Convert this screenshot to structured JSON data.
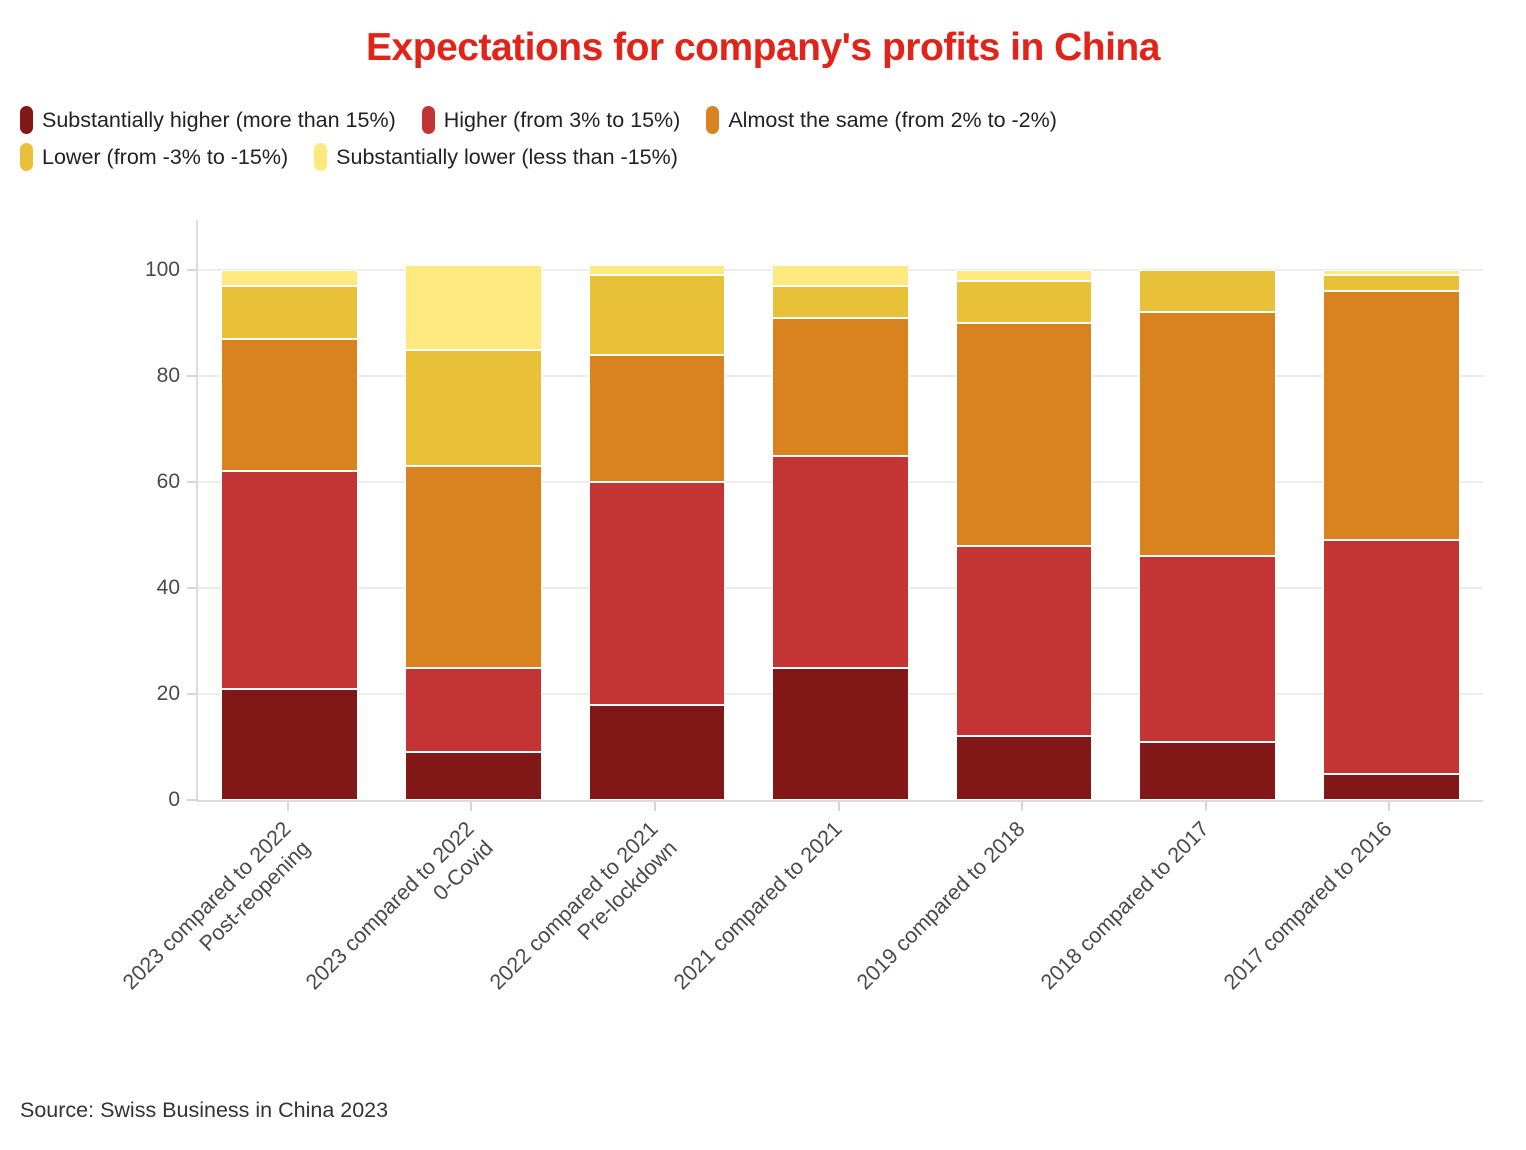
{
  "title": "Expectations for company's profits in China",
  "source": "Source: Swiss Business in China 2023",
  "colors": {
    "title": "#e2231a",
    "axis_text": "#4a4a4a",
    "grid": "#ececec"
  },
  "chart_data": {
    "type": "bar",
    "stacked": true,
    "title": "Expectations for company's profits in China",
    "xlabel": "",
    "ylabel": "",
    "yticks": [
      0,
      20,
      40,
      60,
      80,
      100
    ],
    "ylim": [
      0,
      109
    ],
    "grid": true,
    "legend_position": "top-left",
    "categories": [
      {
        "lines": [
          "2023 compared to 2022",
          "Post-reopening"
        ]
      },
      {
        "lines": [
          "2023 compared to 2022",
          "0-Covid"
        ]
      },
      {
        "lines": [
          "2022 compared to 2021",
          "Pre-lockdown"
        ]
      },
      {
        "lines": [
          "2021 compared to 2021"
        ]
      },
      {
        "lines": [
          "2019 compared to 2018"
        ]
      },
      {
        "lines": [
          "2018 compared to 2017"
        ]
      },
      {
        "lines": [
          "2017 compared to 2016"
        ]
      }
    ],
    "series": [
      {
        "name": "Substantially higher (more than 15%)",
        "color": "#821717",
        "values": [
          21,
          9,
          18,
          25,
          12,
          11,
          5
        ]
      },
      {
        "name": "Higher (from 3% to 15%)",
        "color": "#c53434",
        "values": [
          41,
          16,
          42,
          40,
          36,
          35,
          44
        ]
      },
      {
        "name": "Almost the same (from 2% to -2%)",
        "color": "#d98320",
        "values": [
          25,
          38,
          24,
          26,
          42,
          46,
          47
        ]
      },
      {
        "name": "Lower (from -3% to -15%)",
        "color": "#e8c139",
        "values": [
          10,
          22,
          15,
          6,
          8,
          8,
          3
        ]
      },
      {
        "name": "Substantially lower (less than -15%)",
        "color": "#fee97e",
        "values": [
          3,
          16,
          2,
          4,
          2,
          0,
          1
        ]
      }
    ]
  }
}
